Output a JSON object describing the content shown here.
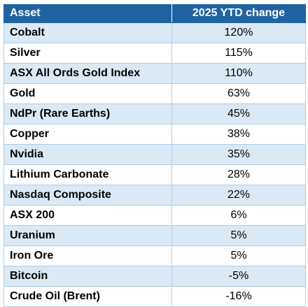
{
  "chart_data": {
    "type": "table",
    "columns": [
      "Asset",
      "2025 YTD change"
    ],
    "rows": [
      {
        "asset": "Cobalt",
        "change": "120%",
        "value": 120
      },
      {
        "asset": "Silver",
        "change": "115%",
        "value": 115
      },
      {
        "asset": "ASX All Ords Gold Index",
        "change": "110%",
        "value": 110
      },
      {
        "asset": "Gold",
        "change": "63%",
        "value": 63
      },
      {
        "asset": "NdPr (Rare Earths)",
        "change": "45%",
        "value": 45
      },
      {
        "asset": "Copper",
        "change": "38%",
        "value": 38
      },
      {
        "asset": "Nvidia",
        "change": "35%",
        "value": 35
      },
      {
        "asset": "Lithium Carbonate",
        "change": "28%",
        "value": 28
      },
      {
        "asset": "Nasdaq Composite",
        "change": "22%",
        "value": 22
      },
      {
        "asset": "ASX 200",
        "change": "6%",
        "value": 6
      },
      {
        "asset": "Uranium",
        "change": "5%",
        "value": 5
      },
      {
        "asset": "Iron Ore",
        "change": "5%",
        "value": 5
      },
      {
        "asset": "Bitcoin",
        "change": "-5%",
        "value": -5
      },
      {
        "asset": "Crude Oil (Brent)",
        "change": "-16%",
        "value": -16
      }
    ]
  },
  "colors": {
    "header_bg": "#1f63a0",
    "header_text": "#ffffff",
    "row_shaded": "#dbe9f5",
    "row_plain": "#ffffff",
    "border": "#a9cde8"
  }
}
